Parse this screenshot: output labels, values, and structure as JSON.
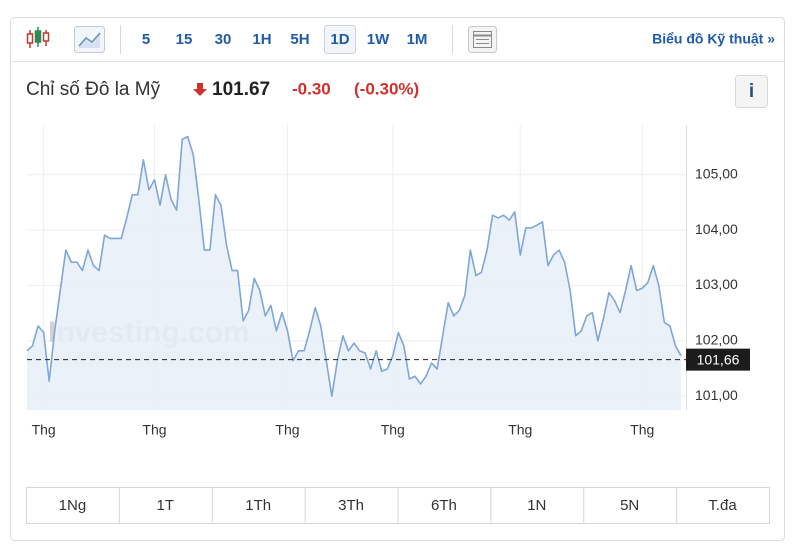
{
  "toolbar": {
    "intervals": [
      {
        "label": "5",
        "selected": false
      },
      {
        "label": "15",
        "selected": false
      },
      {
        "label": "30",
        "selected": false
      },
      {
        "label": "1H",
        "selected": false
      },
      {
        "label": "5H",
        "selected": false
      },
      {
        "label": "1D",
        "selected": true
      },
      {
        "label": "1W",
        "selected": false
      },
      {
        "label": "1M",
        "selected": false
      }
    ],
    "technical_link": "Biểu đồ Kỹ thuật »"
  },
  "header": {
    "name": "Chỉ số Đô la Mỹ",
    "price": "101.67",
    "change": "-0.30",
    "change_percent": "(-0.30%)",
    "info": "i"
  },
  "chart_data": {
    "type": "area",
    "watermark": "Investing.com",
    "color": "#7ea6d8",
    "fill": "#e6eef8",
    "values": [
      101.82,
      101.91,
      102.27,
      102.15,
      101.27,
      102.18,
      102.91,
      103.64,
      103.42,
      103.42,
      103.27,
      103.64,
      103.36,
      103.27,
      103.91,
      103.85,
      103.85,
      103.85,
      104.22,
      104.64,
      104.64,
      105.27,
      104.73,
      104.91,
      104.45,
      105.0,
      104.55,
      104.36,
      105.64,
      105.69,
      105.36,
      104.55,
      103.64,
      103.64,
      104.64,
      104.45,
      103.73,
      103.27,
      103.27,
      102.36,
      102.55,
      103.13,
      102.91,
      102.45,
      102.64,
      102.18,
      102.51,
      102.18,
      101.64,
      101.82,
      101.82,
      102.18,
      102.6,
      102.27,
      101.64,
      101.0,
      101.64,
      102.09,
      101.82,
      101.96,
      101.82,
      101.78,
      101.49,
      101.82,
      101.45,
      101.49,
      101.73,
      102.15,
      101.91,
      101.31,
      101.36,
      101.22,
      101.36,
      101.6,
      101.49,
      102.09,
      102.69,
      102.45,
      102.55,
      102.82,
      103.64,
      103.18,
      103.24,
      103.64,
      104.27,
      104.22,
      104.27,
      104.18,
      104.33,
      103.55,
      104.04,
      104.04,
      104.09,
      104.15,
      103.36,
      103.55,
      103.64,
      103.42,
      102.91,
      102.09,
      102.18,
      102.45,
      102.51,
      102.0,
      102.4,
      102.87,
      102.73,
      102.51,
      102.91,
      103.36,
      102.91,
      102.95,
      103.05,
      103.36,
      103.0,
      102.33,
      102.27,
      101.91,
      101.73
    ],
    "xlim": [
      0,
      118
    ],
    "xticks": [
      {
        "value": 3,
        "label": "Thg"
      },
      {
        "value": 23,
        "label": "Thg"
      },
      {
        "value": 47,
        "label": "Thg"
      },
      {
        "value": 66,
        "label": "Thg"
      },
      {
        "value": 89,
        "label": "Thg"
      },
      {
        "value": 111,
        "label": "Thg"
      }
    ],
    "ylim": [
      100.75,
      105.9
    ],
    "yticks": [
      {
        "value": 101,
        "label": "101,00"
      },
      {
        "value": 102,
        "label": "102,00"
      },
      {
        "value": 103,
        "label": "103,00"
      },
      {
        "value": 104,
        "label": "104,00"
      },
      {
        "value": 105,
        "label": "105,00"
      }
    ],
    "last_price": {
      "value": 101.66,
      "label": "101,66"
    },
    "grid": true
  },
  "ranges": [
    "1Ng",
    "1T",
    "1Th",
    "3Th",
    "6Th",
    "1N",
    "5N",
    "T.đa"
  ]
}
